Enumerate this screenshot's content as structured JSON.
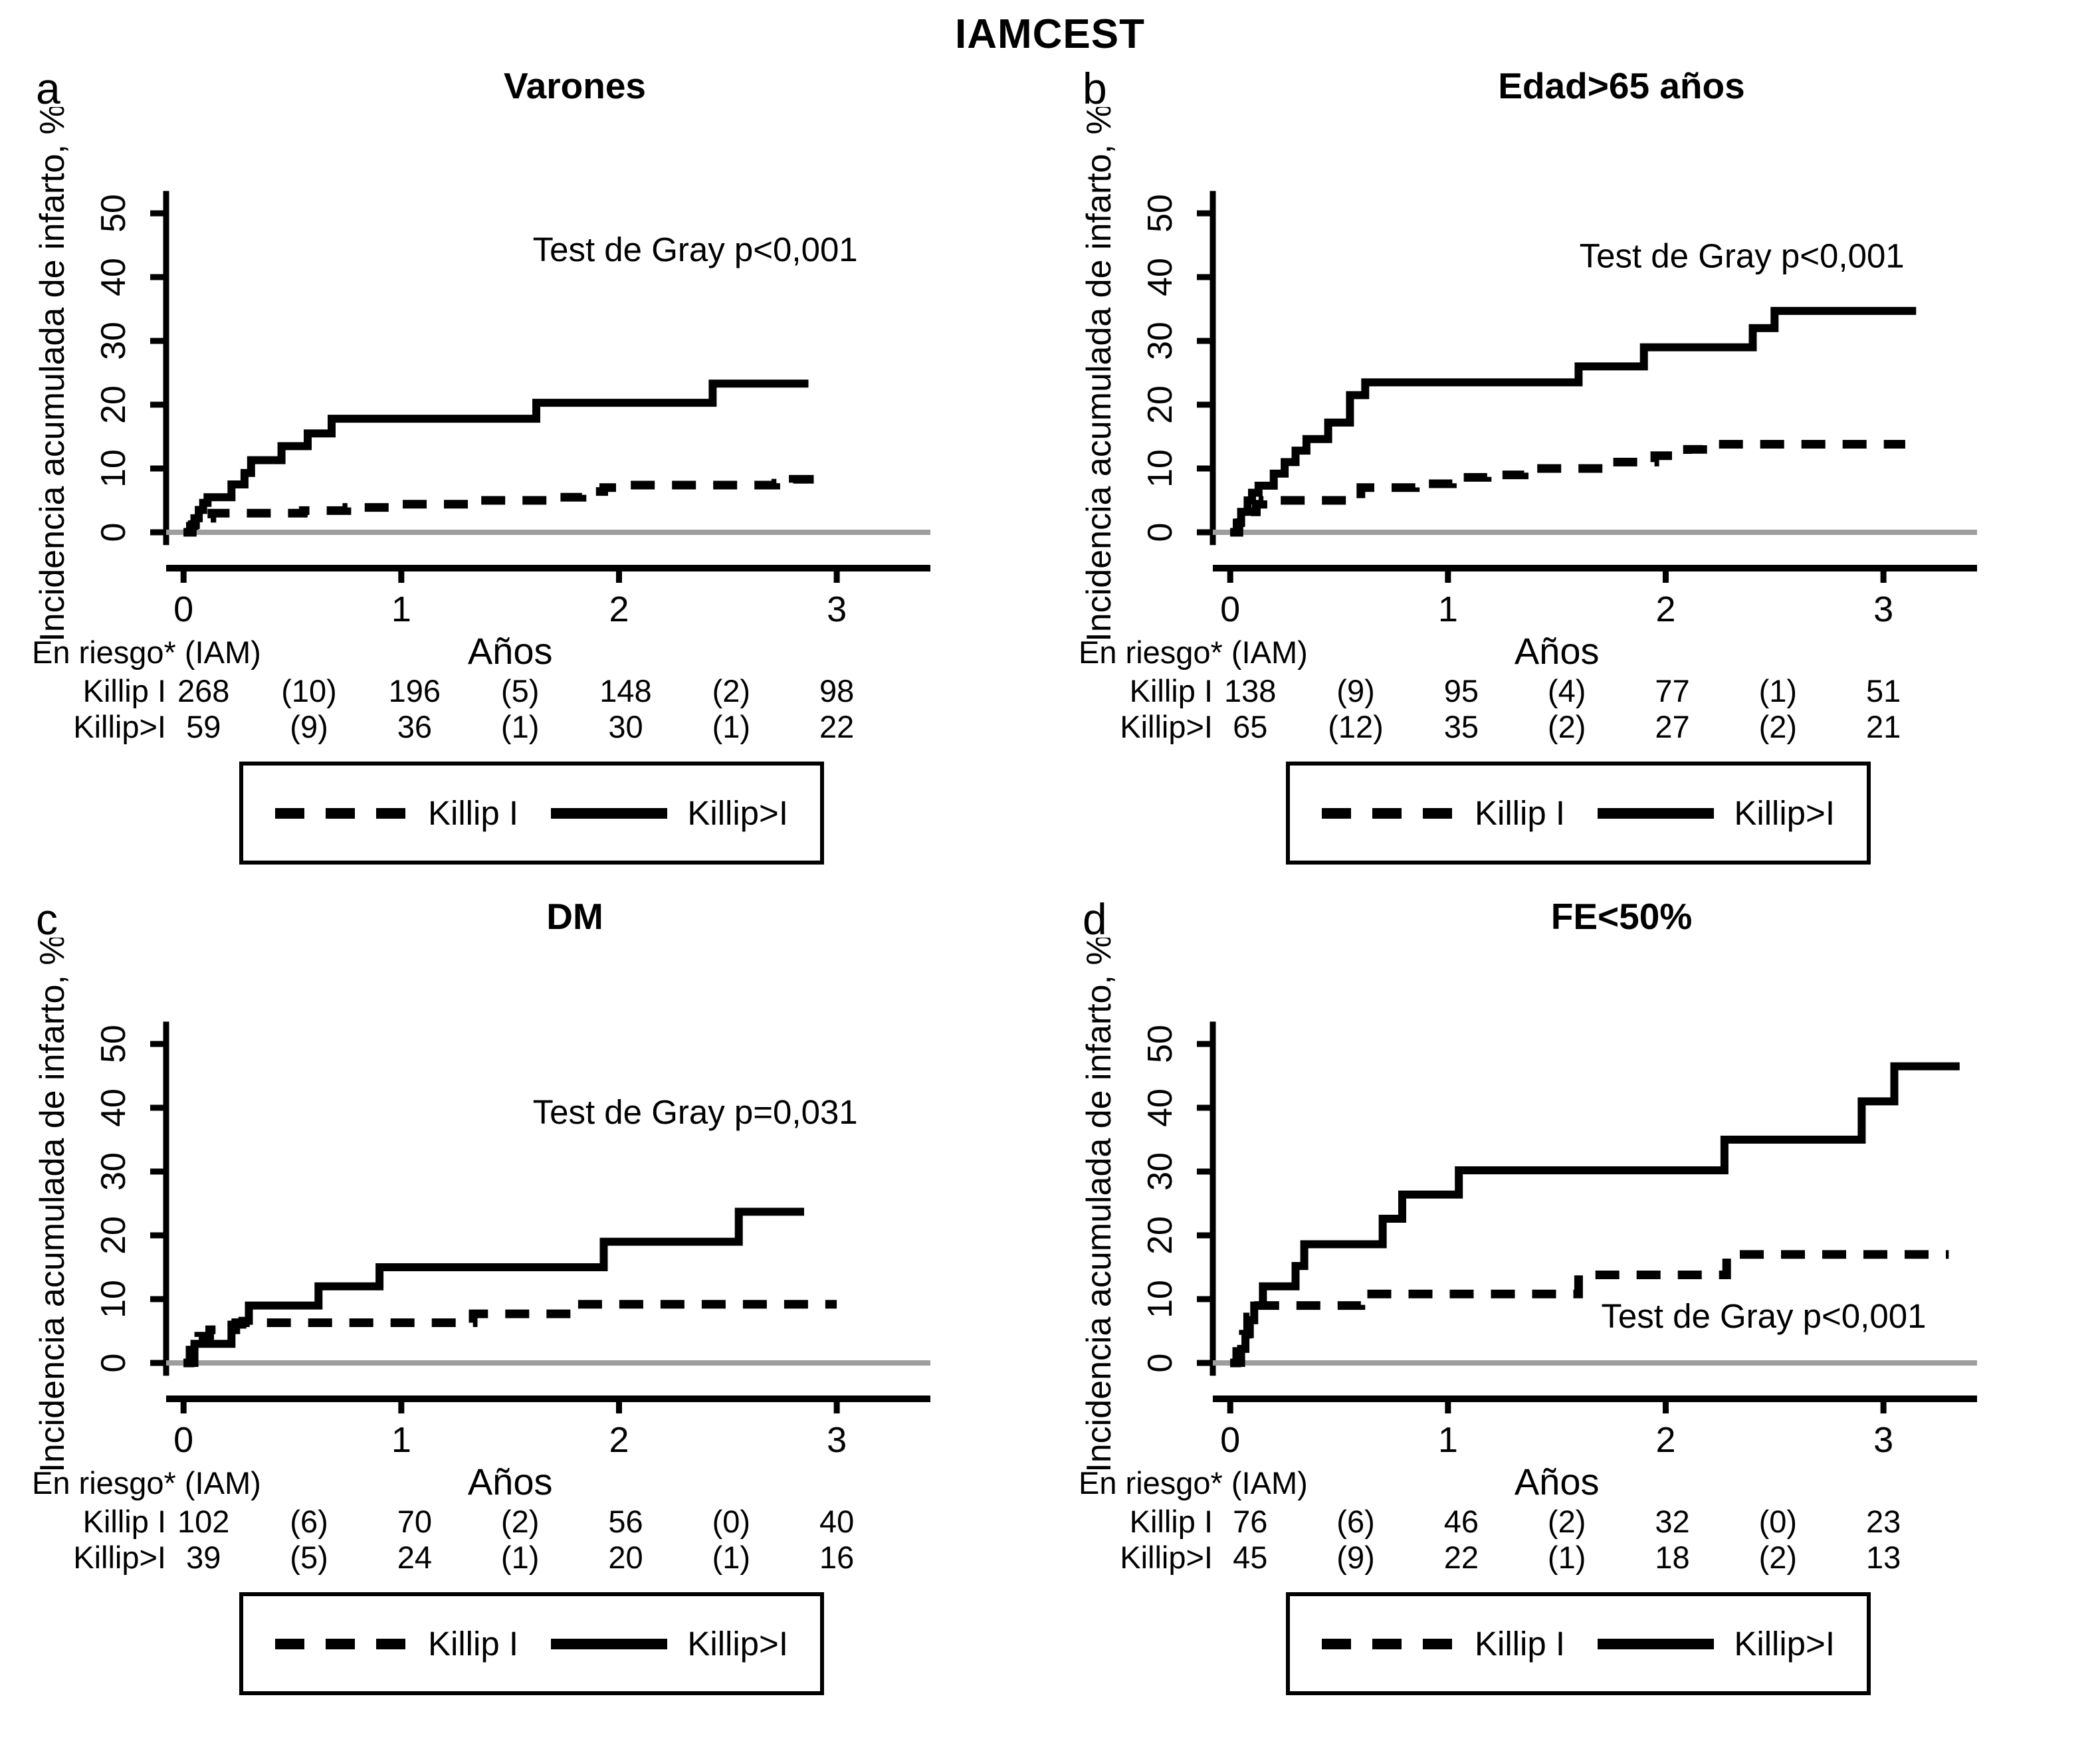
{
  "figure_title": "IAMCEST",
  "shared": {
    "ylabel": "Incidencia acumulada de infarto, %",
    "xlabel": "Años",
    "risk_header": "En riesgo* (IAM)",
    "legend": [
      {
        "label": "Killip I",
        "style": "dashed"
      },
      {
        "label": "Killip>I",
        "style": "solid"
      }
    ],
    "colors": {
      "curve": "#000000",
      "zero_line": "#9e9e9e",
      "background": "#ffffff"
    }
  },
  "chart_data": [
    {
      "type": "line",
      "letter": "a",
      "title": "Varones",
      "annotation": "Test de Gray p<0,001",
      "annotation_xy": [
        2.35,
        42.5
      ],
      "xlabel": "Años",
      "ylabel": "Incidencia acumulada de infarto, %",
      "xlim": [
        -0.08,
        3.43
      ],
      "ylim": [
        0,
        52
      ],
      "x_ticks": [
        0,
        1,
        2,
        3
      ],
      "y_ticks": [
        0,
        10,
        20,
        30,
        40,
        50
      ],
      "series": [
        {
          "name": "Killip I",
          "style": "dashed",
          "points": [
            [
              0,
              0
            ],
            [
              0.04,
              0
            ],
            [
              0.04,
              1.2
            ],
            [
              0.08,
              1.2
            ],
            [
              0.08,
              2.2
            ],
            [
              0.13,
              2.2
            ],
            [
              0.13,
              3.0
            ],
            [
              0.55,
              3.0
            ],
            [
              0.55,
              3.4
            ],
            [
              0.75,
              3.4
            ],
            [
              0.75,
              3.9
            ],
            [
              1.0,
              3.9
            ],
            [
              1.0,
              4.4
            ],
            [
              1.35,
              4.4
            ],
            [
              1.35,
              5.0
            ],
            [
              1.72,
              5.0
            ],
            [
              1.72,
              5.5
            ],
            [
              1.83,
              5.5
            ],
            [
              1.83,
              6.4
            ],
            [
              1.93,
              6.4
            ],
            [
              1.93,
              7.0
            ],
            [
              2.05,
              7.0
            ],
            [
              2.05,
              7.4
            ],
            [
              2.72,
              7.4
            ],
            [
              2.72,
              7.7
            ],
            [
              2.8,
              7.7
            ],
            [
              2.8,
              8.3
            ],
            [
              2.95,
              8.3
            ]
          ]
        },
        {
          "name": "Killip>I",
          "style": "solid",
          "points": [
            [
              0,
              0
            ],
            [
              0.03,
              0
            ],
            [
              0.03,
              1
            ],
            [
              0.05,
              1
            ],
            [
              0.05,
              2.2
            ],
            [
              0.07,
              2.2
            ],
            [
              0.07,
              3.5
            ],
            [
              0.09,
              3.5
            ],
            [
              0.09,
              4.6
            ],
            [
              0.11,
              4.6
            ],
            [
              0.11,
              5.5
            ],
            [
              0.22,
              5.5
            ],
            [
              0.22,
              7.5
            ],
            [
              0.28,
              7.5
            ],
            [
              0.28,
              9.3
            ],
            [
              0.31,
              9.3
            ],
            [
              0.31,
              11.3
            ],
            [
              0.45,
              11.3
            ],
            [
              0.45,
              13.5
            ],
            [
              0.57,
              13.5
            ],
            [
              0.57,
              15.5
            ],
            [
              0.68,
              15.5
            ],
            [
              0.68,
              17.8
            ],
            [
              1.62,
              17.8
            ],
            [
              1.62,
              20.3
            ],
            [
              2.43,
              20.3
            ],
            [
              2.43,
              23.3
            ],
            [
              2.87,
              23.3
            ]
          ]
        }
      ],
      "at_risk": {
        "header": "En riesgo* (IAM)",
        "times": [
          0,
          0.5,
          1,
          1.5,
          2,
          2.5,
          3
        ],
        "rows": [
          {
            "label": "Killip I",
            "values": [
              "268",
              "(10)",
              "196",
              "(5)",
              "148",
              "(2)",
              "98"
            ]
          },
          {
            "label": "Killip>I",
            "values": [
              "59",
              "(9)",
              "36",
              "(1)",
              "30",
              "(1)",
              "22"
            ]
          }
        ]
      }
    },
    {
      "type": "line",
      "letter": "b",
      "title": "Edad>65 años",
      "annotation": "Test de Gray p<0,001",
      "annotation_xy": [
        2.35,
        41.5
      ],
      "xlabel": "Años",
      "ylabel": "Incidencia acumulada de infarto, %",
      "xlim": [
        -0.08,
        3.43
      ],
      "ylim": [
        0,
        52
      ],
      "x_ticks": [
        0,
        1,
        2,
        3
      ],
      "y_ticks": [
        0,
        10,
        20,
        30,
        40,
        50
      ],
      "series": [
        {
          "name": "Killip I",
          "style": "dashed",
          "points": [
            [
              0,
              0
            ],
            [
              0.04,
              0
            ],
            [
              0.04,
              1.5
            ],
            [
              0.08,
              1.5
            ],
            [
              0.08,
              3.2
            ],
            [
              0.12,
              3.2
            ],
            [
              0.12,
              4.4
            ],
            [
              0.15,
              4.4
            ],
            [
              0.15,
              5.0
            ],
            [
              0.6,
              5.0
            ],
            [
              0.6,
              7.0
            ],
            [
              0.85,
              7.0
            ],
            [
              0.85,
              7.6
            ],
            [
              1.02,
              7.6
            ],
            [
              1.02,
              8.6
            ],
            [
              1.18,
              8.6
            ],
            [
              1.18,
              9.0
            ],
            [
              1.35,
              9.0
            ],
            [
              1.35,
              10.0
            ],
            [
              1.75,
              10.0
            ],
            [
              1.75,
              11.0
            ],
            [
              1.95,
              11.0
            ],
            [
              1.95,
              12.0
            ],
            [
              2.1,
              12.0
            ],
            [
              2.1,
              13.0
            ],
            [
              2.17,
              13.0
            ],
            [
              2.17,
              13.8
            ],
            [
              3.1,
              13.8
            ]
          ]
        },
        {
          "name": "Killip>I",
          "style": "solid",
          "points": [
            [
              0,
              0
            ],
            [
              0.03,
              0
            ],
            [
              0.03,
              1.5
            ],
            [
              0.05,
              1.5
            ],
            [
              0.05,
              3.2
            ],
            [
              0.08,
              3.2
            ],
            [
              0.08,
              5.0
            ],
            [
              0.1,
              5.0
            ],
            [
              0.1,
              6.2
            ],
            [
              0.13,
              6.2
            ],
            [
              0.13,
              7.3
            ],
            [
              0.2,
              7.3
            ],
            [
              0.2,
              9.2
            ],
            [
              0.25,
              9.2
            ],
            [
              0.25,
              11.0
            ],
            [
              0.3,
              11.0
            ],
            [
              0.3,
              12.8
            ],
            [
              0.35,
              12.8
            ],
            [
              0.35,
              14.6
            ],
            [
              0.45,
              14.6
            ],
            [
              0.45,
              17.2
            ],
            [
              0.55,
              17.2
            ],
            [
              0.55,
              21.5
            ],
            [
              0.62,
              21.5
            ],
            [
              0.62,
              23.5
            ],
            [
              1.6,
              23.5
            ],
            [
              1.6,
              26.0
            ],
            [
              1.9,
              26.0
            ],
            [
              1.9,
              29.0
            ],
            [
              2.4,
              29.0
            ],
            [
              2.4,
              32.0
            ],
            [
              2.5,
              32.0
            ],
            [
              2.5,
              34.7
            ],
            [
              3.15,
              34.7
            ]
          ]
        }
      ],
      "at_risk": {
        "header": "En riesgo* (IAM)",
        "times": [
          0,
          0.5,
          1,
          1.5,
          2,
          2.5,
          3
        ],
        "rows": [
          {
            "label": "Killip I",
            "values": [
              "138",
              "(9)",
              "95",
              "(4)",
              "77",
              "(1)",
              "51"
            ]
          },
          {
            "label": "Killip>I",
            "values": [
              "65",
              "(12)",
              "35",
              "(2)",
              "27",
              "(2)",
              "21"
            ]
          }
        ]
      }
    },
    {
      "type": "line",
      "letter": "c",
      "title": "DM",
      "annotation": "Test de Gray p=0,031",
      "annotation_xy": [
        2.35,
        37.5
      ],
      "xlabel": "Años",
      "ylabel": "Incidencia acumulada de infarto, %",
      "xlim": [
        -0.08,
        3.43
      ],
      "ylim": [
        0,
        52
      ],
      "x_ticks": [
        0,
        1,
        2,
        3
      ],
      "y_ticks": [
        0,
        10,
        20,
        30,
        40,
        50
      ],
      "series": [
        {
          "name": "Killip I",
          "style": "dashed",
          "points": [
            [
              0,
              0
            ],
            [
              0.03,
              0
            ],
            [
              0.03,
              2.0
            ],
            [
              0.07,
              2.0
            ],
            [
              0.07,
              4.2
            ],
            [
              0.12,
              4.2
            ],
            [
              0.12,
              5.2
            ],
            [
              0.24,
              5.2
            ],
            [
              0.24,
              6.3
            ],
            [
              1.33,
              6.3
            ],
            [
              1.33,
              7.7
            ],
            [
              1.8,
              7.7
            ],
            [
              1.8,
              9.2
            ],
            [
              3.0,
              9.2
            ]
          ]
        },
        {
          "name": "Killip>I",
          "style": "solid",
          "points": [
            [
              0,
              0
            ],
            [
              0.05,
              0
            ],
            [
              0.05,
              3.0
            ],
            [
              0.22,
              3.0
            ],
            [
              0.22,
              6.0
            ],
            [
              0.27,
              6.0
            ],
            [
              0.27,
              6.6
            ],
            [
              0.3,
              6.6
            ],
            [
              0.3,
              9.0
            ],
            [
              0.62,
              9.0
            ],
            [
              0.62,
              12.0
            ],
            [
              0.9,
              12.0
            ],
            [
              0.9,
              15.0
            ],
            [
              1.93,
              15.0
            ],
            [
              1.93,
              19.0
            ],
            [
              2.55,
              19.0
            ],
            [
              2.55,
              23.7
            ],
            [
              2.85,
              23.7
            ]
          ]
        }
      ],
      "at_risk": {
        "header": "En riesgo* (IAM)",
        "times": [
          0,
          0.5,
          1,
          1.5,
          2,
          2.5,
          3
        ],
        "rows": [
          {
            "label": "Killip I",
            "values": [
              "102",
              "(6)",
              "70",
              "(2)",
              "56",
              "(0)",
              "40"
            ]
          },
          {
            "label": "Killip>I",
            "values": [
              "39",
              "(5)",
              "24",
              "(1)",
              "20",
              "(1)",
              "16"
            ]
          }
        ]
      }
    },
    {
      "type": "line",
      "letter": "d",
      "title": "FE<50%",
      "annotation": "Test de Gray p<0,001",
      "annotation_xy": [
        2.45,
        5.5
      ],
      "xlabel": "Años",
      "ylabel": "Incidencia acumulada de infarto, %",
      "xlim": [
        -0.08,
        3.43
      ],
      "ylim": [
        0,
        52
      ],
      "x_ticks": [
        0,
        1,
        2,
        3
      ],
      "y_ticks": [
        0,
        10,
        20,
        30,
        40,
        50
      ],
      "series": [
        {
          "name": "Killip I",
          "style": "dashed",
          "points": [
            [
              0,
              0
            ],
            [
              0.03,
              0
            ],
            [
              0.03,
              1.8
            ],
            [
              0.06,
              1.8
            ],
            [
              0.06,
              4.5
            ],
            [
              0.08,
              4.5
            ],
            [
              0.08,
              7.2
            ],
            [
              0.13,
              7.2
            ],
            [
              0.13,
              9.0
            ],
            [
              0.6,
              9.0
            ],
            [
              0.6,
              10.8
            ],
            [
              1.6,
              10.8
            ],
            [
              1.6,
              13.8
            ],
            [
              2.28,
              13.8
            ],
            [
              2.28,
              17.0
            ],
            [
              3.3,
              17.0
            ]
          ]
        },
        {
          "name": "Killip>I",
          "style": "solid",
          "points": [
            [
              0,
              0
            ],
            [
              0.05,
              0
            ],
            [
              0.05,
              2.2
            ],
            [
              0.07,
              2.2
            ],
            [
              0.07,
              4.5
            ],
            [
              0.09,
              4.5
            ],
            [
              0.09,
              6.7
            ],
            [
              0.11,
              6.7
            ],
            [
              0.11,
              9.0
            ],
            [
              0.15,
              9.0
            ],
            [
              0.15,
              12.0
            ],
            [
              0.3,
              12.0
            ],
            [
              0.3,
              15.2
            ],
            [
              0.34,
              15.2
            ],
            [
              0.34,
              18.6
            ],
            [
              0.7,
              18.6
            ],
            [
              0.7,
              22.6
            ],
            [
              0.79,
              22.6
            ],
            [
              0.79,
              26.4
            ],
            [
              1.05,
              26.4
            ],
            [
              1.05,
              30.2
            ],
            [
              2.27,
              30.2
            ],
            [
              2.27,
              35.0
            ],
            [
              2.9,
              35.0
            ],
            [
              2.9,
              41.0
            ],
            [
              3.05,
              41.0
            ],
            [
              3.05,
              46.5
            ],
            [
              3.35,
              46.5
            ]
          ]
        }
      ],
      "at_risk": {
        "header": "En riesgo* (IAM)",
        "times": [
          0,
          0.5,
          1,
          1.5,
          2,
          2.5,
          3
        ],
        "rows": [
          {
            "label": "Killip I",
            "values": [
              "76",
              "(6)",
              "46",
              "(2)",
              "32",
              "(0)",
              "23"
            ]
          },
          {
            "label": "Killip>I",
            "values": [
              "45",
              "(9)",
              "22",
              "(1)",
              "18",
              "(2)",
              "13"
            ]
          }
        ]
      }
    }
  ]
}
